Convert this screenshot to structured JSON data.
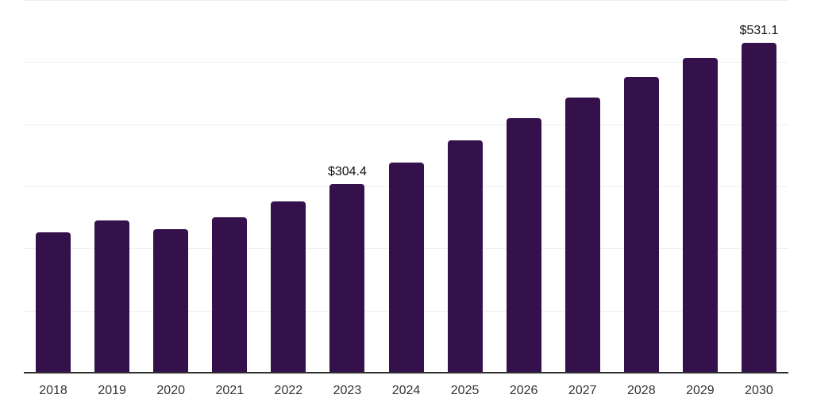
{
  "chart_data": {
    "type": "bar",
    "categories": [
      "2018",
      "2019",
      "2020",
      "2021",
      "2022",
      "2023",
      "2024",
      "2025",
      "2026",
      "2027",
      "2028",
      "2029",
      "2030"
    ],
    "values": [
      225.5,
      244.7,
      231.1,
      249.8,
      275.4,
      304.4,
      337.9,
      373.7,
      409.4,
      443.4,
      476.2,
      506.2,
      531.1
    ],
    "annotations": [
      {
        "category": "2023",
        "label": "$304.4"
      },
      {
        "category": "2030",
        "label": "$531.1"
      }
    ],
    "xlabel": "",
    "ylabel": "",
    "ylim": [
      0,
      600
    ],
    "gridline_step": 100,
    "grid": true,
    "legend_position": "none",
    "colors": {
      "bar": "#35114b",
      "gridline": "#efefef",
      "axis_line": "#2e2e2e",
      "data_label": "#111111",
      "tick_label": "#333333",
      "background": "#ffffff"
    }
  }
}
